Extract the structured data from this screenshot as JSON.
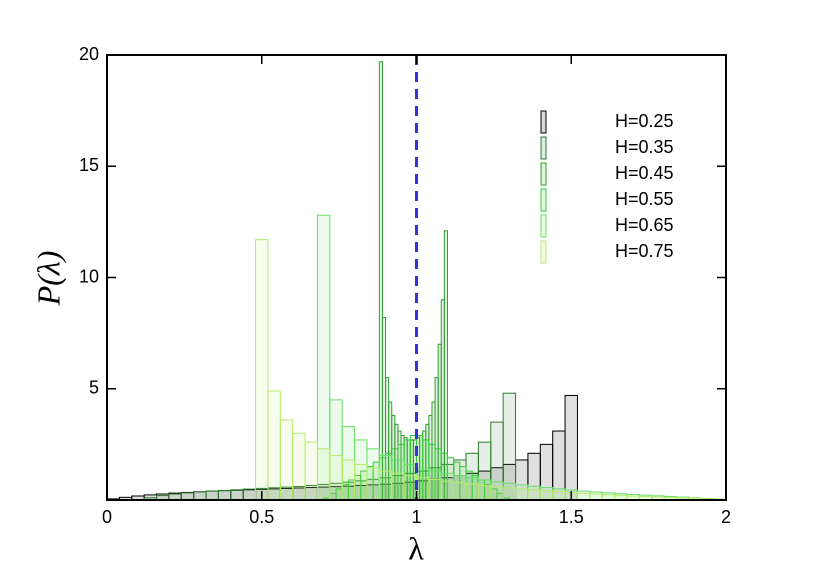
{
  "chart_data": {
    "type": "histogram",
    "x_label": "λ",
    "y_label": "P(λ)",
    "xlim": [
      0,
      2
    ],
    "xticks": [
      0,
      0.5,
      1,
      1.5,
      2
    ],
    "ylim": [
      0,
      20
    ],
    "yticks": [
      5,
      10,
      15,
      20
    ],
    "legend": "upper right",
    "vline": {
      "x": 1,
      "color": "#3333dd"
    },
    "series": [
      {
        "name": "H=0.25",
        "color": "#000000",
        "bins": [
          0,
          0.04,
          0.08,
          0.12,
          0.16,
          0.2,
          0.24,
          0.28,
          0.32,
          0.36,
          0.4,
          0.44,
          0.48,
          0.52,
          0.56,
          0.6,
          0.64,
          0.68,
          0.72,
          0.76,
          0.8,
          0.84,
          0.88,
          0.92,
          0.96,
          1,
          1.04,
          1.08,
          1.12,
          1.16,
          1.2,
          1.24,
          1.28,
          1.32,
          1.36,
          1.4,
          1.44,
          1.48,
          1.52
        ],
        "values": [
          0.05,
          0.12,
          0.18,
          0.23,
          0.27,
          0.31,
          0.34,
          0.37,
          0.4,
          0.42,
          0.44,
          0.46,
          0.48,
          0.5,
          0.52,
          0.54,
          0.56,
          0.58,
          0.6,
          0.62,
          0.65,
          0.68,
          0.71,
          0.75,
          0.8,
          0.86,
          0.93,
          1.0,
          1.1,
          1.2,
          1.3,
          1.45,
          1.6,
          1.8,
          2.1,
          2.5,
          3.1,
          4.7
        ]
      },
      {
        "name": "H=0.35",
        "color": "#2f7a2f",
        "bins": [
          0.12,
          0.16,
          0.2,
          0.24,
          0.28,
          0.32,
          0.36,
          0.4,
          0.44,
          0.48,
          0.52,
          0.56,
          0.6,
          0.64,
          0.68,
          0.72,
          0.76,
          0.8,
          0.84,
          0.88,
          0.92,
          0.96,
          1,
          1.04,
          1.08,
          1.12,
          1.16,
          1.2,
          1.24,
          1.28,
          1.32
        ],
        "values": [
          0.1,
          0.2,
          0.27,
          0.32,
          0.36,
          0.4,
          0.43,
          0.46,
          0.49,
          0.52,
          0.55,
          0.58,
          0.61,
          0.65,
          0.7,
          0.75,
          0.8,
          0.86,
          0.93,
          1.0,
          1.1,
          1.2,
          1.3,
          1.45,
          1.6,
          1.8,
          2.1,
          2.6,
          3.5,
          4.8
        ]
      },
      {
        "name": "H=0.45",
        "color": "#2e9e2e",
        "bins": [
          0.88,
          0.89,
          0.9,
          0.91,
          0.92,
          0.93,
          0.94,
          0.95,
          0.96,
          0.97,
          0.98,
          0.99,
          1,
          1.01,
          1.02,
          1.03,
          1.04,
          1.05,
          1.06,
          1.07,
          1.08,
          1.09,
          1.1
        ],
        "values": [
          19.7,
          8.2,
          5.5,
          4.4,
          3.8,
          3.4,
          3.1,
          2.9,
          2.8,
          2.7,
          2.7,
          2.7,
          2.8,
          2.9,
          3.1,
          3.4,
          3.8,
          4.4,
          5.5,
          7.0,
          9.0,
          12.1
        ]
      },
      {
        "name": "H=0.55",
        "color": "#33cc33",
        "bins": [
          0.7,
          0.72,
          0.74,
          0.76,
          0.78,
          0.8,
          0.82,
          0.84,
          0.86,
          0.88,
          0.9,
          0.92,
          0.94,
          0.96,
          0.98,
          1,
          1.02,
          1.04,
          1.06,
          1.08,
          1.1,
          1.12,
          1.14,
          1.16,
          1.18,
          1.2,
          1.22,
          1.24,
          1.26,
          1.28,
          1.3
        ],
        "values": [
          0.1,
          0.3,
          0.5,
          0.7,
          0.9,
          1.1,
          1.3,
          1.5,
          1.7,
          1.9,
          2.1,
          2.3,
          2.5,
          2.7,
          2.9,
          2.9,
          2.7,
          2.5,
          2.3,
          2.1,
          1.9,
          1.7,
          1.5,
          1.3,
          1.1,
          0.9,
          0.7,
          0.5,
          0.3,
          0.1
        ]
      },
      {
        "name": "H=0.65",
        "color": "#66e066",
        "bins": [
          0.68,
          0.72,
          0.76,
          0.8,
          0.84,
          0.88,
          0.92,
          0.96,
          1,
          1.04,
          1.08,
          1.12,
          1.16,
          1.2,
          1.24,
          1.28,
          1.32,
          1.36,
          1.4,
          1.44,
          1.48,
          1.52,
          1.56,
          1.6,
          1.64,
          1.68,
          1.72,
          1.76,
          1.8,
          1.84,
          1.88,
          1.92,
          1.96,
          2
        ],
        "values": [
          12.8,
          4.5,
          3.3,
          2.7,
          2.3,
          2.0,
          1.8,
          1.6,
          1.45,
          1.3,
          1.2,
          1.1,
          1.0,
          0.9,
          0.82,
          0.75,
          0.68,
          0.62,
          0.56,
          0.5,
          0.45,
          0.4,
          0.36,
          0.32,
          0.28,
          0.25,
          0.22,
          0.19,
          0.16,
          0.13,
          0.1,
          0.07,
          0.04
        ]
      },
      {
        "name": "H=0.75",
        "color": "#b5ec6a",
        "bins": [
          0.48,
          0.52,
          0.56,
          0.6,
          0.64,
          0.68,
          0.72,
          0.76,
          0.8,
          0.84,
          0.88,
          0.92,
          0.96,
          1,
          1.04,
          1.08,
          1.12,
          1.16,
          1.2,
          1.24,
          1.28,
          1.32,
          1.36,
          1.4,
          1.44,
          1.48,
          1.52,
          1.56,
          1.6,
          1.64,
          1.68,
          1.72,
          1.76,
          1.8,
          1.84,
          1.88,
          1.92,
          1.96,
          2
        ],
        "values": [
          11.7,
          4.9,
          3.6,
          3.0,
          2.6,
          2.3,
          2.0,
          1.8,
          1.6,
          1.45,
          1.3,
          1.2,
          1.1,
          1.0,
          0.92,
          0.85,
          0.78,
          0.72,
          0.66,
          0.6,
          0.55,
          0.5,
          0.46,
          0.42,
          0.38,
          0.34,
          0.3,
          0.27,
          0.24,
          0.21,
          0.18,
          0.16,
          0.14,
          0.12,
          0.1,
          0.08,
          0.06,
          0.04
        ]
      }
    ]
  }
}
